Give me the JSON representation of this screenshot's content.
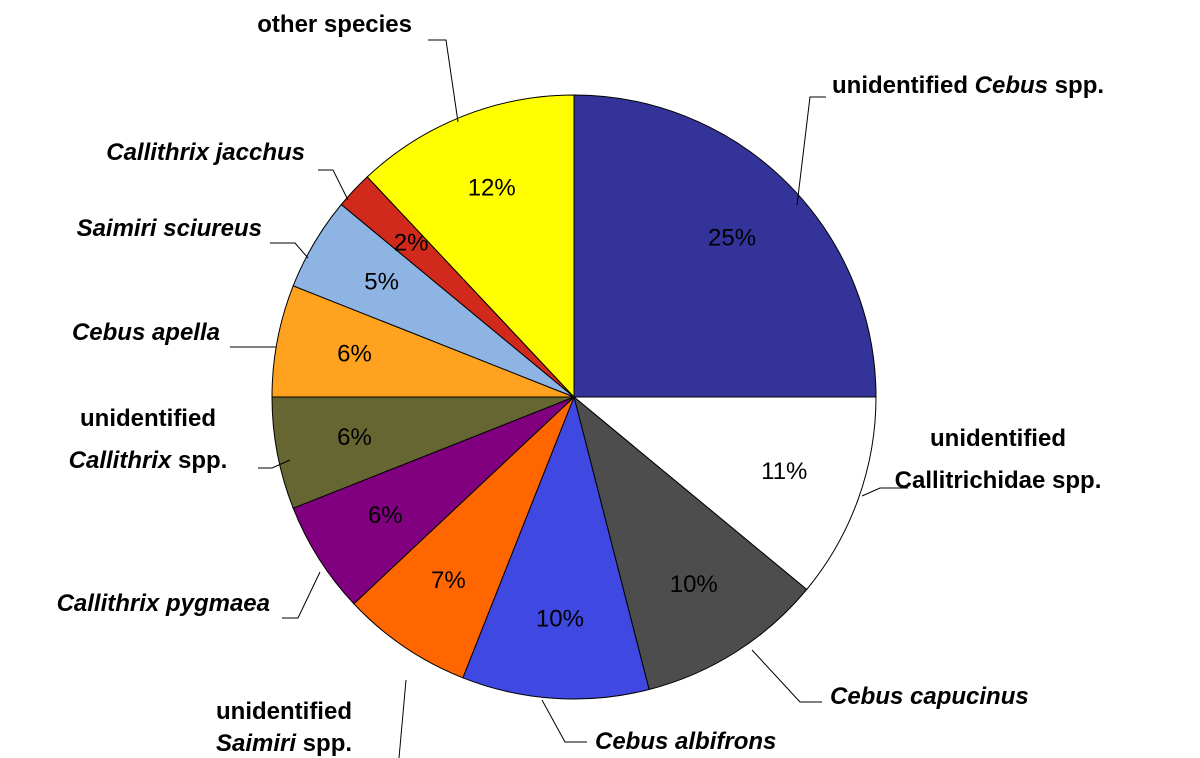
{
  "chart_data": {
    "type": "pie",
    "categories": [
      [
        [
          {
            "text": "unidentified "
          },
          {
            "text": "Cebus",
            "italic": true
          },
          {
            "text": " spp."
          }
        ]
      ],
      [
        [
          {
            "text": "unidentified"
          }
        ],
        [
          {
            "text": "Callitrichidae spp."
          }
        ]
      ],
      [
        [
          {
            "text": "Cebus capucinus",
            "italic": true
          }
        ]
      ],
      [
        [
          {
            "text": "Cebus albifrons",
            "italic": true
          }
        ]
      ],
      [
        [
          {
            "text": "unidentified"
          }
        ],
        [
          {
            "text": "Saimiri",
            "italic": true
          },
          {
            "text": " spp."
          }
        ]
      ],
      [
        [
          {
            "text": "Callithrix pygmaea",
            "italic": true
          }
        ]
      ],
      [
        [
          {
            "text": "unidentified"
          }
        ],
        [
          {
            "text": "Callithrix",
            "italic": true
          },
          {
            "text": " spp."
          }
        ]
      ],
      [
        [
          {
            "text": "Cebus apella",
            "italic": true
          }
        ]
      ],
      [
        [
          {
            "text": "Saimiri sciureus",
            "italic": true
          }
        ]
      ],
      [
        [
          {
            "text": "Callithrix jacchus",
            "italic": true
          }
        ]
      ],
      [
        [
          {
            "text": "other species"
          }
        ]
      ]
    ],
    "values": [
      25,
      11,
      10,
      10,
      7,
      6,
      6,
      6,
      5,
      2,
      12
    ],
    "value_labels": [
      "25%",
      "11%",
      "10%",
      "10%",
      "7%",
      "6%",
      "6%",
      "6%",
      "5%",
      "2%",
      "12%"
    ],
    "colors": [
      "#333399",
      "#ffffff",
      "#4d4d4d",
      "#3f48e0",
      "#ff6600",
      "#800080",
      "#666633",
      "#ffa21f",
      "#8eb4e3",
      "#d12a1c",
      "#ffff00"
    ]
  }
}
